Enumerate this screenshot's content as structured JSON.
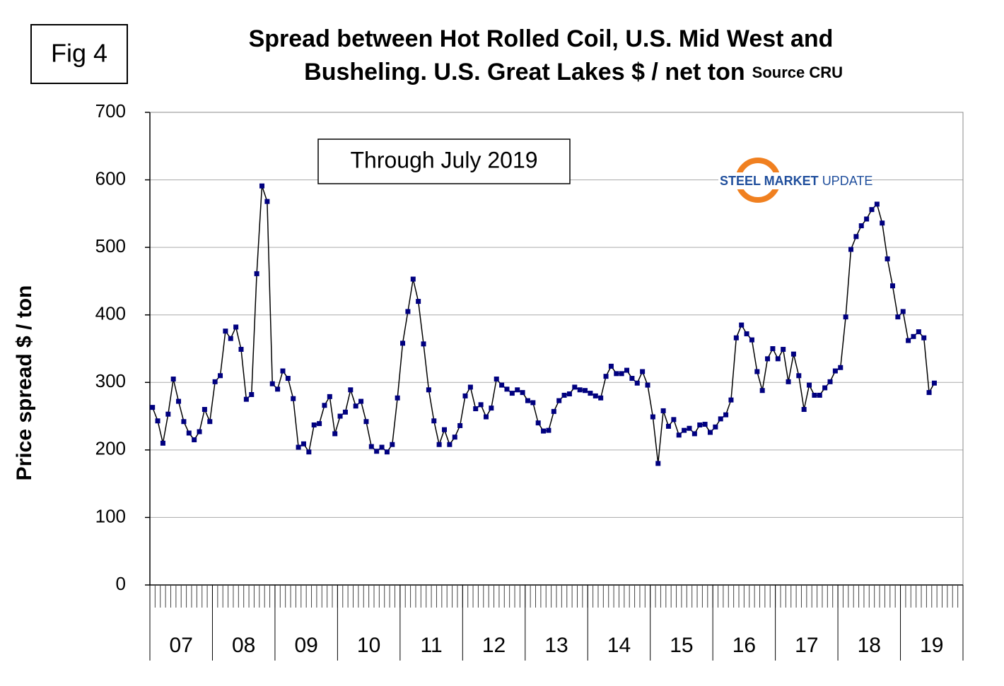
{
  "chart_data": {
    "type": "line",
    "figure_label": "Fig 4",
    "title": [
      "Spread between Hot Rolled Coil, U.S. Mid West and",
      "Busheling. U.S. Great Lakes  $ / net ton"
    ],
    "source": "Source CRU",
    "annotation": "Through July 2019",
    "logo": {
      "bold": "STEEL MARKET",
      "rest": "UPDATE"
    },
    "ylabel": "Price spread $ / ton",
    "year_groups": [
      "07",
      "08",
      "09",
      "10",
      "11",
      "12",
      "13",
      "14",
      "15",
      "16",
      "17",
      "18",
      "19"
    ],
    "months_per_group": 12,
    "values": [
      263,
      243,
      210,
      253,
      305,
      272,
      242,
      225,
      215,
      227,
      260,
      242,
      301,
      310,
      376,
      365,
      382,
      349,
      275,
      282,
      461,
      591,
      568,
      298,
      290,
      317,
      306,
      276,
      204,
      209,
      197,
      237,
      239,
      266,
      279,
      224,
      250,
      256,
      289,
      265,
      272,
      242,
      205,
      198,
      204,
      197,
      208,
      277,
      358,
      405,
      453,
      420,
      357,
      289,
      243,
      208,
      230,
      208,
      219,
      236,
      280,
      293,
      261,
      267,
      249,
      262,
      305,
      296,
      290,
      284,
      289,
      285,
      273,
      270,
      240,
      228,
      229,
      257,
      273,
      281,
      283,
      293,
      289,
      288,
      284,
      280,
      277,
      309,
      324,
      313,
      313,
      318,
      306,
      299,
      316,
      296,
      249,
      180,
      258,
      235,
      245,
      222,
      229,
      232,
      224,
      237,
      238,
      226,
      234,
      246,
      252,
      274,
      366,
      385,
      372,
      363,
      316,
      288,
      335,
      350,
      335,
      349,
      301,
      342,
      310,
      260,
      296,
      281,
      281,
      292,
      301,
      317,
      322,
      397,
      497,
      516,
      532,
      542,
      556,
      564,
      536,
      483,
      443,
      397,
      405,
      362,
      368,
      375,
      366,
      285,
      299
    ],
    "line_color": "#000000",
    "marker_color": "#000080",
    "ylim": [
      0,
      700
    ],
    "yticks": [
      0,
      100,
      200,
      300,
      400,
      500,
      600,
      700
    ],
    "grid": true
  }
}
